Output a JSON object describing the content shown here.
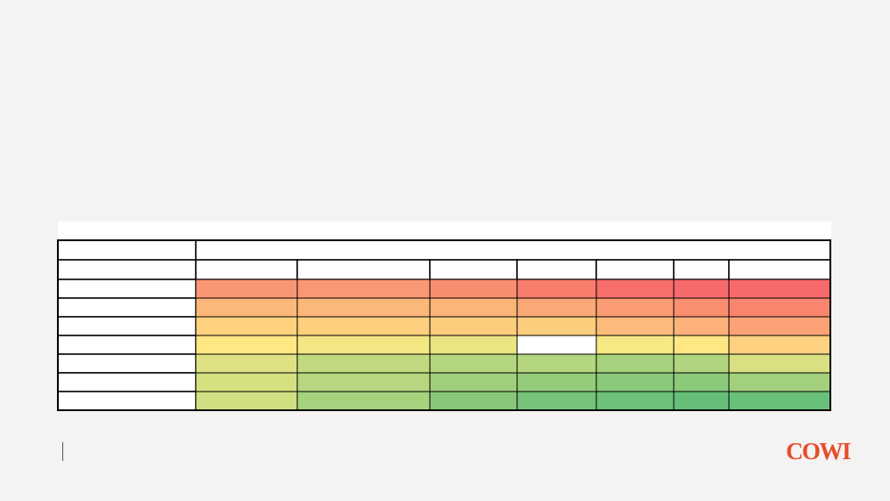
{
  "logo": "COWI"
}
